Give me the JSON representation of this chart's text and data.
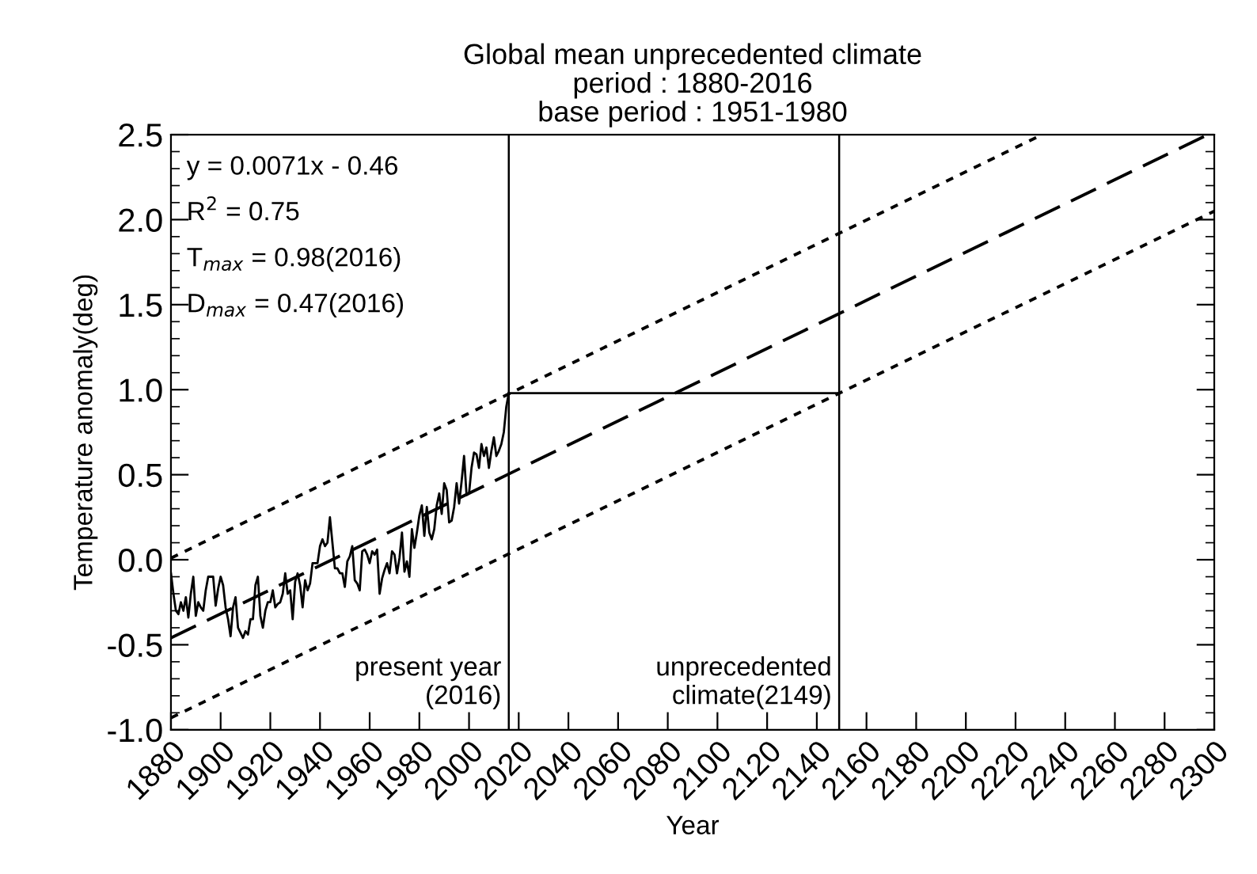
{
  "chart_data": {
    "type": "line",
    "title": "Global mean unprecedented climate\nperiod : 1880-2016\nbase period : 1951-1980",
    "xlabel": "Year",
    "ylabel": "Temperature anomaly(deg)",
    "x": [
      1880,
      1881,
      1882,
      1883,
      1884,
      1885,
      1886,
      1887,
      1888,
      1889,
      1890,
      1891,
      1892,
      1893,
      1894,
      1895,
      1896,
      1897,
      1898,
      1899,
      1900,
      1901,
      1902,
      1903,
      1904,
      1905,
      1906,
      1907,
      1908,
      1909,
      1910,
      1911,
      1912,
      1913,
      1914,
      1915,
      1916,
      1917,
      1918,
      1919,
      1920,
      1921,
      1922,
      1923,
      1924,
      1925,
      1926,
      1927,
      1928,
      1929,
      1930,
      1931,
      1932,
      1933,
      1934,
      1935,
      1936,
      1937,
      1938,
      1939,
      1940,
      1941,
      1942,
      1943,
      1944,
      1945,
      1946,
      1947,
      1948,
      1949,
      1950,
      1951,
      1952,
      1953,
      1954,
      1955,
      1956,
      1957,
      1958,
      1959,
      1960,
      1961,
      1962,
      1963,
      1964,
      1965,
      1966,
      1967,
      1968,
      1969,
      1970,
      1971,
      1972,
      1973,
      1974,
      1975,
      1976,
      1977,
      1978,
      1979,
      1980,
      1981,
      1982,
      1983,
      1984,
      1985,
      1986,
      1987,
      1988,
      1989,
      1990,
      1991,
      1992,
      1993,
      1994,
      1995,
      1996,
      1997,
      1998,
      1999,
      2000,
      2001,
      2002,
      2003,
      2004,
      2005,
      2006,
      2007,
      2008,
      2009,
      2010,
      2011,
      2012,
      2013,
      2014,
      2015,
      2016
    ],
    "series": [
      {
        "color": "#000000",
        "line_style": "solid",
        "values": [
          -0.08,
          -0.2,
          -0.3,
          -0.32,
          -0.25,
          -0.3,
          -0.22,
          -0.34,
          -0.2,
          -0.1,
          -0.33,
          -0.25,
          -0.28,
          -0.3,
          -0.18,
          -0.1,
          -0.1,
          -0.1,
          -0.27,
          -0.17,
          -0.1,
          -0.15,
          -0.28,
          -0.35,
          -0.45,
          -0.28,
          -0.22,
          -0.4,
          -0.43,
          -0.46,
          -0.42,
          -0.44,
          -0.35,
          -0.35,
          -0.15,
          -0.1,
          -0.33,
          -0.4,
          -0.3,
          -0.25,
          -0.25,
          -0.18,
          -0.28,
          -0.26,
          -0.25,
          -0.2,
          -0.08,
          -0.2,
          -0.18,
          -0.35,
          -0.13,
          -0.08,
          -0.15,
          -0.28,
          -0.12,
          -0.18,
          -0.14,
          -0.02,
          -0.02,
          -0.02,
          0.08,
          0.12,
          0.08,
          0.1,
          0.25,
          0.1,
          -0.05,
          -0.05,
          -0.08,
          -0.08,
          -0.16,
          -0.01,
          0.02,
          0.08,
          -0.12,
          -0.14,
          -0.18,
          0.05,
          0.06,
          0.03,
          -0.02,
          0.05,
          0.03,
          0.06,
          -0.2,
          -0.11,
          -0.06,
          -0.02,
          -0.08,
          0.05,
          0.03,
          -0.08,
          0.01,
          0.16,
          -0.07,
          -0.01,
          -0.1,
          0.18,
          0.07,
          0.16,
          0.26,
          0.32,
          0.14,
          0.31,
          0.16,
          0.12,
          0.18,
          0.32,
          0.39,
          0.27,
          0.45,
          0.41,
          0.22,
          0.23,
          0.31,
          0.45,
          0.33,
          0.46,
          0.61,
          0.38,
          0.39,
          0.54,
          0.63,
          0.62,
          0.54,
          0.68,
          0.61,
          0.66,
          0.54,
          0.64,
          0.72,
          0.61,
          0.64,
          0.68,
          0.75,
          0.9,
          0.98
        ]
      },
      {
        "color": "#000000",
        "line_style": "dashed",
        "x": [
          1880,
          2296
        ],
        "values": [
          -0.46,
          2.49
        ]
      },
      {
        "color": "#000000",
        "line_style": "dotted",
        "x": [
          1880,
          2230
        ],
        "values": [
          0.01,
          2.495
        ]
      },
      {
        "color": "#000000",
        "line_style": "dotted",
        "x": [
          1880,
          2300
        ],
        "values": [
          -0.93,
          2.05
        ]
      },
      {
        "color": "#000000",
        "line_style": "solid",
        "x": [
          2016,
          2149
        ],
        "values": [
          0.98,
          0.98
        ]
      }
    ],
    "ref_lines": [
      {
        "axis": "x",
        "value": 2016,
        "label": "present year\n(2016)",
        "color": "#000000"
      },
      {
        "axis": "x",
        "value": 2149,
        "label": "unprecedented\nclimate(2149)",
        "color": "#000000"
      }
    ],
    "annotations": [
      "y = 0.0071x - 0.46",
      "R$^{2}$ = 0.75",
      "T$_{max}$ = 0.98(2016)",
      "D$_{max}$ = 0.47(2016)"
    ],
    "xlim": [
      1880,
      2300
    ],
    "xticks": [
      1880,
      1900,
      1920,
      1940,
      1960,
      1980,
      2000,
      2020,
      2040,
      2060,
      2080,
      2100,
      2120,
      2140,
      2160,
      2180,
      2200,
      2220,
      2240,
      2260,
      2280,
      2300
    ],
    "ylim": [
      -1.0,
      2.5
    ],
    "yticks": [
      {
        "value": -1.0,
        "label": "-1.0"
      },
      {
        "value": -0.5,
        "label": "-0.5"
      },
      {
        "value": 0.0,
        "label": "0.0"
      },
      {
        "value": 0.5,
        "label": "0.5"
      },
      {
        "value": 1.0,
        "label": "1.0"
      },
      {
        "value": 1.5,
        "label": "1.5"
      },
      {
        "value": 2.0,
        "label": "2.0"
      },
      {
        "value": 2.5,
        "label": "2.5"
      }
    ],
    "grid": false,
    "legend": false,
    "marker": "none"
  }
}
